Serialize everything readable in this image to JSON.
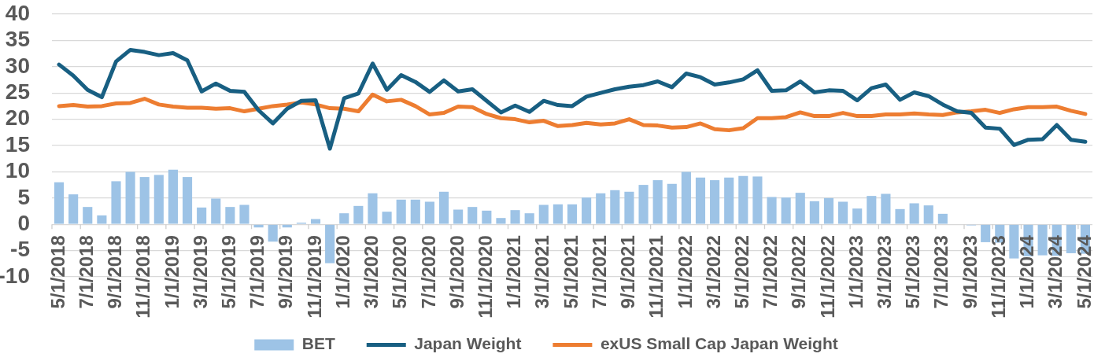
{
  "chart_data": {
    "type": "bar",
    "categories": [
      "5/1/2018",
      null,
      "7/1/2018",
      null,
      "9/1/2018",
      null,
      "11/1/2018",
      null,
      "1/1/2019",
      null,
      "3/1/2019",
      null,
      "5/1/2019",
      null,
      "7/1/2019",
      null,
      "9/1/2019",
      null,
      "11/1/2019",
      null,
      "1/1/2020",
      null,
      "3/1/2020",
      null,
      "5/1/2020",
      null,
      "7/1/2020",
      null,
      "9/1/2020",
      null,
      "11/1/2020",
      null,
      "1/1/2021",
      null,
      "3/1/2021",
      null,
      "5/1/2021",
      null,
      "7/1/2021",
      null,
      "9/1/2021",
      null,
      "11/1/2021",
      null,
      "1/1/2022",
      null,
      "3/1/2022",
      null,
      "5/1/2022",
      null,
      "7/1/2022",
      null,
      "9/1/2022",
      null,
      "11/1/2022",
      null,
      "1/1/2023",
      null,
      "3/1/2023",
      null,
      "5/1/2023",
      null,
      "7/1/2023",
      null,
      "9/1/2023",
      null,
      "11/1/2023",
      null,
      "1/1/2024",
      null,
      "3/1/2024",
      null,
      "5/1/2024"
    ],
    "series": [
      {
        "name": "BET",
        "color": "#9dc3e6",
        "values": [
          8.0,
          5.7,
          3.3,
          1.7,
          8.2,
          10.0,
          9.0,
          9.4,
          10.4,
          9.0,
          3.2,
          4.9,
          3.3,
          3.7,
          -0.6,
          -3.3,
          -0.6,
          0.3,
          1.0,
          -7.4,
          2.1,
          3.5,
          5.9,
          2.4,
          4.7,
          4.7,
          4.3,
          6.2,
          2.8,
          3.3,
          2.6,
          1.2,
          2.7,
          2.1,
          3.7,
          3.8,
          3.8,
          5.1,
          5.9,
          6.5,
          6.2,
          7.5,
          8.4,
          7.7,
          10.0,
          8.9,
          8.4,
          8.9,
          9.2,
          9.1,
          5.2,
          5.1,
          6.0,
          4.4,
          5.0,
          4.3,
          3.0,
          5.4,
          5.8,
          2.9,
          4.0,
          3.6,
          2.0,
          null,
          -0.2,
          -3.4,
          -3.5,
          -6.5,
          -6.1,
          -5.9,
          -6.0,
          -5.5,
          -5.6
        ]
      },
      {
        "name": "Japan Weight",
        "type": "line",
        "color": "#185f82",
        "values": [
          30.4,
          28.3,
          25.6,
          24.2,
          31.0,
          33.2,
          32.8,
          32.2,
          32.6,
          31.2,
          25.3,
          26.8,
          25.4,
          25.2,
          21.7,
          19.2,
          22.0,
          23.5,
          23.6,
          14.4,
          24.0,
          24.9,
          30.6,
          25.6,
          28.4,
          27.1,
          25.2,
          27.4,
          25.3,
          25.7,
          23.5,
          21.3,
          22.6,
          21.4,
          23.5,
          22.7,
          22.5,
          24.3,
          25.0,
          25.7,
          26.2,
          26.5,
          27.2,
          26.1,
          28.7,
          28.0,
          26.6,
          27.0,
          27.6,
          29.3,
          25.4,
          25.5,
          27.2,
          25.1,
          25.5,
          25.4,
          23.6,
          25.9,
          26.6,
          23.7,
          25.1,
          24.4,
          22.8,
          21.5,
          21.2,
          18.4,
          18.2,
          15.1,
          16.1,
          16.2,
          18.9,
          16.1,
          15.7
        ]
      },
      {
        "name": "exUS Small Cap Japan Weight",
        "type": "line",
        "color": "#ed7d31",
        "values": [
          22.5,
          22.7,
          22.4,
          22.5,
          23.0,
          23.1,
          23.9,
          22.8,
          22.4,
          22.2,
          22.2,
          22.0,
          22.1,
          21.5,
          22.0,
          22.5,
          22.8,
          23.2,
          22.8,
          22.1,
          22.0,
          21.5,
          24.7,
          23.4,
          23.7,
          22.5,
          20.9,
          21.2,
          22.4,
          22.3,
          21.0,
          20.2,
          20.0,
          19.4,
          19.7,
          18.7,
          18.9,
          19.3,
          19.0,
          19.2,
          20.0,
          18.9,
          18.8,
          18.4,
          18.5,
          19.2,
          18.1,
          17.9,
          18.3,
          20.2,
          20.2,
          20.4,
          21.3,
          20.6,
          20.6,
          21.2,
          20.6,
          20.6,
          20.9,
          20.9,
          21.1,
          20.9,
          20.8,
          21.3,
          21.5,
          21.8,
          21.2,
          21.9,
          22.3,
          22.3,
          22.4,
          21.6,
          21.0
        ]
      }
    ],
    "ylim": [
      -10,
      40
    ],
    "yticks": [
      -10,
      -5,
      0,
      5,
      10,
      15,
      20,
      25,
      30,
      35,
      40
    ],
    "grid": "y",
    "legend": "bottom",
    "line_style": "solid"
  }
}
